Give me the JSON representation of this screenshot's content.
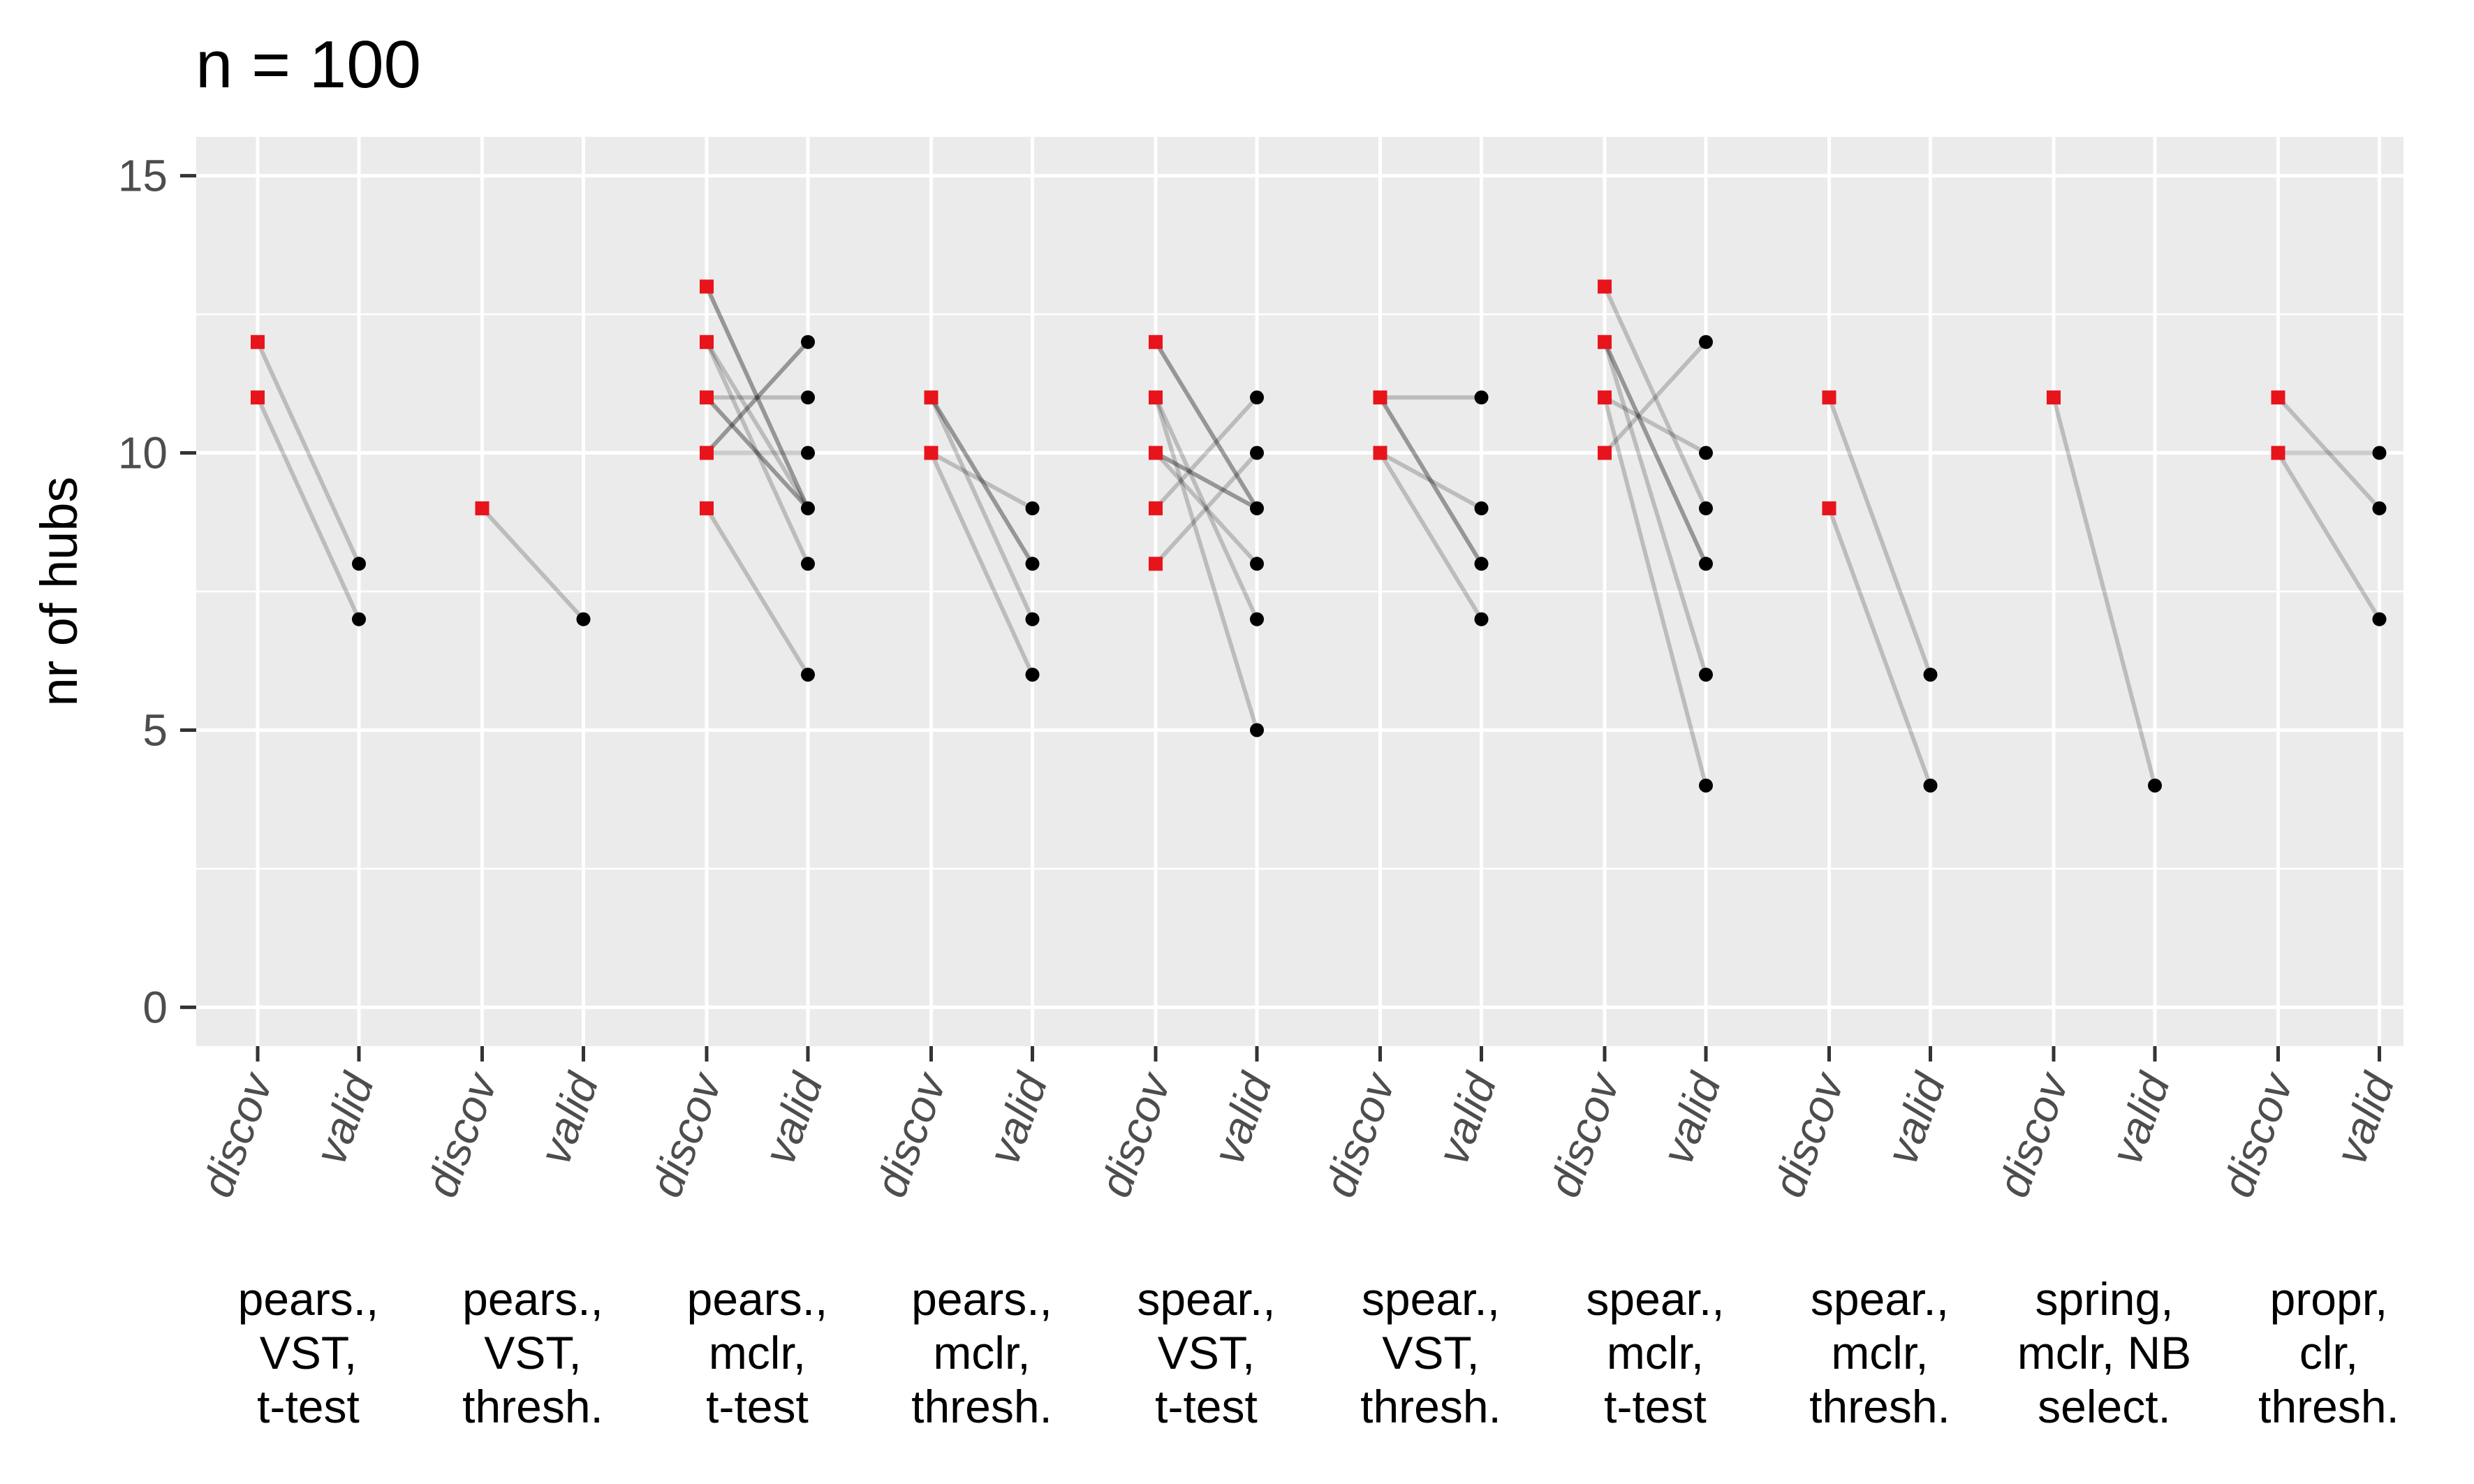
{
  "chart_data": {
    "type": "scatter",
    "title": "n = 100",
    "xlabel": "",
    "ylabel": "nr of hubs",
    "ylim": [
      -0.7,
      15.7
    ],
    "yticks": [
      0,
      5,
      10,
      15
    ],
    "grid": true,
    "x_tick_labels": [
      "discov",
      "valid"
    ],
    "groups": [
      {
        "label": [
          "pears.,",
          "VST,",
          "t-test"
        ],
        "lines": [
          [
            12,
            8
          ],
          [
            11,
            7
          ]
        ]
      },
      {
        "label": [
          "pears.,",
          "VST,",
          "thresh."
        ],
        "lines": [
          [
            9,
            7
          ]
        ]
      },
      {
        "label": [
          "pears.,",
          "mclr,",
          "t-test"
        ],
        "lines": [
          [
            13,
            9
          ],
          [
            13,
            9
          ],
          [
            12,
            9
          ],
          [
            12,
            8
          ],
          [
            11,
            11
          ],
          [
            11,
            9
          ],
          [
            11,
            9
          ],
          [
            10,
            12
          ],
          [
            10,
            12
          ],
          [
            10,
            10
          ],
          [
            9,
            6
          ]
        ]
      },
      {
        "label": [
          "pears.,",
          "mclr,",
          "thresh."
        ],
        "lines": [
          [
            11,
            8
          ],
          [
            11,
            8
          ],
          [
            11,
            7
          ],
          [
            10,
            9
          ],
          [
            10,
            6
          ]
        ]
      },
      {
        "label": [
          "spear.,",
          "VST,",
          "t-test"
        ],
        "lines": [
          [
            12,
            9
          ],
          [
            12,
            9
          ],
          [
            11,
            7
          ],
          [
            11,
            5
          ],
          [
            10,
            9
          ],
          [
            10,
            9
          ],
          [
            10,
            8
          ],
          [
            9,
            11
          ],
          [
            8,
            10
          ]
        ]
      },
      {
        "label": [
          "spear.,",
          "VST,",
          "thresh."
        ],
        "lines": [
          [
            11,
            11
          ],
          [
            11,
            8
          ],
          [
            11,
            8
          ],
          [
            10,
            9
          ],
          [
            10,
            7
          ]
        ]
      },
      {
        "label": [
          "spear.,",
          "mclr,",
          "t-test"
        ],
        "lines": [
          [
            13,
            9
          ],
          [
            12,
            8
          ],
          [
            12,
            8
          ],
          [
            12,
            6
          ],
          [
            11,
            10
          ],
          [
            11,
            4
          ],
          [
            10,
            12
          ]
        ]
      },
      {
        "label": [
          "spear.,",
          "mclr,",
          "thresh."
        ],
        "lines": [
          [
            11,
            6
          ],
          [
            9,
            4
          ]
        ]
      },
      {
        "label": [
          "spring,",
          "mclr, NB",
          "select."
        ],
        "lines": [
          [
            11,
            4
          ]
        ]
      },
      {
        "label": [
          "propr,",
          "clr,",
          "thresh."
        ],
        "lines": [
          [
            11,
            9
          ],
          [
            10,
            10
          ],
          [
            10,
            7
          ]
        ]
      }
    ],
    "colors": {
      "panel": "#ebebeb",
      "grid": "#ffffff",
      "discov_point": "#e8141c",
      "valid_point": "#000000",
      "line": "#000000"
    }
  }
}
